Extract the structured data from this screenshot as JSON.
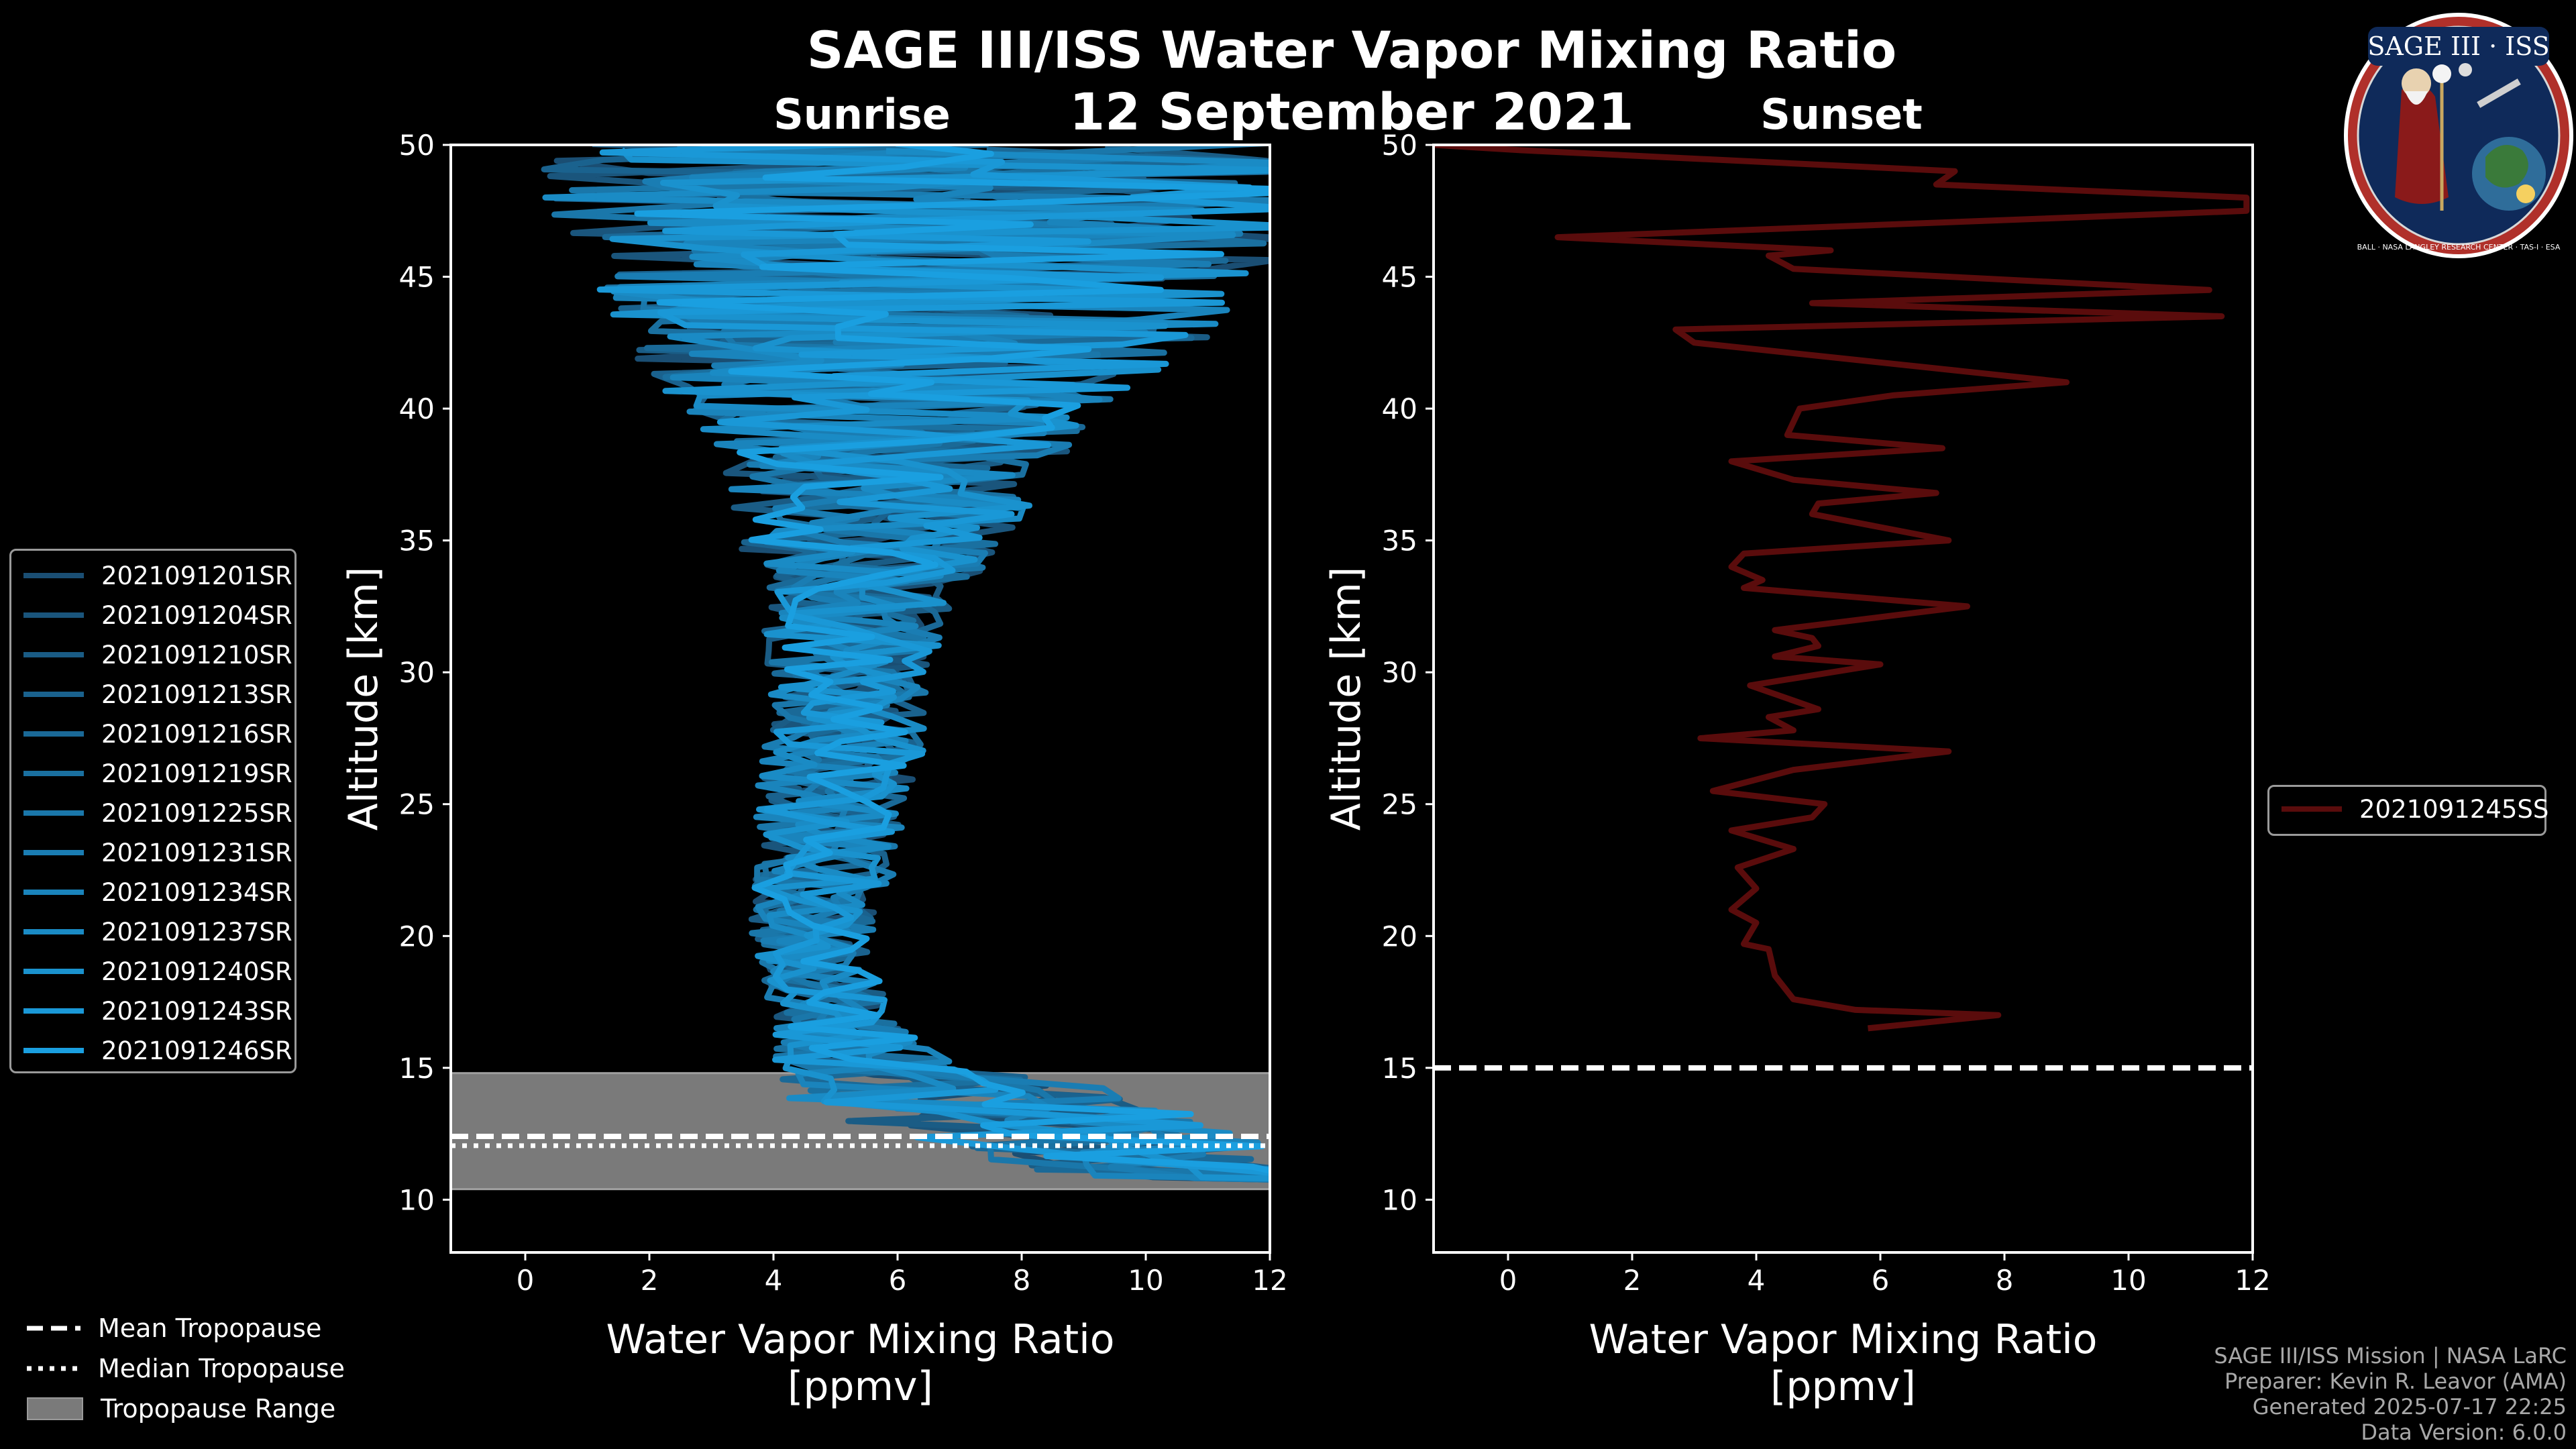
{
  "title": "SAGE III/ISS Water Vapor Mixing Ratio",
  "date": "12 September 2021",
  "logo": {
    "text": "SAGE III · ISS",
    "ring_text": "BALL · NASA LANGLEY RESEARCH CENTER · TAS-I · ESA"
  },
  "credits": [
    "SAGE III/ISS Mission | NASA LaRC",
    "Preparer: Kevin R. Leavor (AMA)",
    "Generated 2025-07-17 22:25",
    "Data Version: 6.0.0"
  ],
  "bottom_legend": [
    "Mean Tropopause",
    "Median Tropopause",
    "Tropopause Range"
  ],
  "chart_data": [
    {
      "type": "line",
      "title": "Sunrise",
      "xlabel": "Water Vapor Mixing Ratio\n[ppmv]",
      "xlabel_lines": [
        "Water Vapor Mixing Ratio",
        "[ppmv]"
      ],
      "ylabel": "Altitude [km]",
      "xlim": [
        -1.2,
        12
      ],
      "ylim": [
        8,
        50
      ],
      "xticks": [
        "0",
        "2",
        "4",
        "6",
        "8",
        "10",
        "12"
      ],
      "yticks": [
        "10",
        "15",
        "20",
        "25",
        "30",
        "35",
        "40",
        "45",
        "50"
      ],
      "series_color_start": "#1a4e73",
      "series_color_end": "#1a9fe0",
      "series": [
        {
          "name": "2021091201SR"
        },
        {
          "name": "2021091204SR"
        },
        {
          "name": "2021091210SR"
        },
        {
          "name": "2021091213SR"
        },
        {
          "name": "2021091216SR"
        },
        {
          "name": "2021091219SR"
        },
        {
          "name": "2021091225SR"
        },
        {
          "name": "2021091231SR"
        },
        {
          "name": "2021091234SR"
        },
        {
          "name": "2021091237SR"
        },
        {
          "name": "2021091240SR"
        },
        {
          "name": "2021091243SR"
        },
        {
          "name": "2021091246SR"
        }
      ],
      "profile_envelope": {
        "altitude_km": [
          10,
          12,
          14,
          15,
          16,
          17,
          18,
          20,
          22,
          25,
          28,
          30,
          33,
          35,
          38,
          40,
          42,
          45,
          48,
          50
        ],
        "center_ppmv": [
          12,
          9,
          7,
          5.5,
          5.2,
          5.0,
          4.8,
          4.6,
          4.8,
          5.0,
          5.2,
          5.2,
          5.4,
          5.6,
          5.8,
          6.0,
          6.2,
          6.5,
          6.8,
          7.0
        ],
        "half_spread_ppmv": [
          1,
          3,
          3,
          1.6,
          1.2,
          1.0,
          1.0,
          1.0,
          1.1,
          1.3,
          1.3,
          1.3,
          1.6,
          2.2,
          2.8,
          3.5,
          4.5,
          5.5,
          6.5,
          7.0
        ]
      },
      "tropopause": {
        "mean_km": 12.4,
        "median_km": 12.2,
        "range_km": [
          10.4,
          14.8
        ]
      }
    },
    {
      "type": "line",
      "title": "Sunset",
      "xlabel": "Water Vapor Mixing Ratio\n[ppmv]",
      "xlabel_lines": [
        "Water Vapor Mixing Ratio",
        "[ppmv]"
      ],
      "ylabel": "Altitude [km]",
      "xlim": [
        -1.2,
        12
      ],
      "ylim": [
        8,
        50
      ],
      "xticks": [
        "0",
        "2",
        "4",
        "6",
        "8",
        "10",
        "12"
      ],
      "yticks": [
        "10",
        "15",
        "20",
        "25",
        "30",
        "35",
        "40",
        "45",
        "50"
      ],
      "series": [
        {
          "name": "2021091245SS",
          "color": "#5a0c0c",
          "points": [
            [
              5.8,
              16.5
            ],
            [
              7.9,
              17.0
            ],
            [
              5.6,
              17.2
            ],
            [
              4.6,
              17.6
            ],
            [
              4.3,
              18.5
            ],
            [
              4.2,
              19.5
            ],
            [
              3.8,
              19.7
            ],
            [
              4.0,
              20.5
            ],
            [
              3.6,
              21.0
            ],
            [
              4.0,
              21.8
            ],
            [
              3.7,
              22.6
            ],
            [
              4.6,
              23.3
            ],
            [
              3.6,
              24.0
            ],
            [
              4.9,
              24.5
            ],
            [
              5.1,
              25.0
            ],
            [
              3.3,
              25.5
            ],
            [
              4.6,
              26.3
            ],
            [
              7.1,
              27.0
            ],
            [
              3.1,
              27.5
            ],
            [
              4.6,
              27.8
            ],
            [
              4.2,
              28.3
            ],
            [
              5.0,
              28.6
            ],
            [
              3.9,
              29.5
            ],
            [
              6.0,
              30.3
            ],
            [
              4.3,
              30.6
            ],
            [
              5.0,
              31.0
            ],
            [
              4.9,
              31.3
            ],
            [
              4.3,
              31.6
            ],
            [
              7.4,
              32.5
            ],
            [
              3.8,
              33.2
            ],
            [
              4.1,
              33.5
            ],
            [
              3.6,
              34.0
            ],
            [
              3.8,
              34.5
            ],
            [
              7.1,
              35.0
            ],
            [
              4.9,
              36.0
            ],
            [
              5.0,
              36.4
            ],
            [
              6.9,
              36.8
            ],
            [
              4.6,
              37.3
            ],
            [
              3.6,
              38.0
            ],
            [
              7.0,
              38.5
            ],
            [
              4.5,
              39.0
            ],
            [
              4.7,
              40.0
            ],
            [
              6.2,
              40.5
            ],
            [
              9.0,
              41.0
            ],
            [
              3.0,
              42.5
            ],
            [
              2.7,
              43.0
            ],
            [
              11.5,
              43.5
            ],
            [
              4.9,
              44.0
            ],
            [
              11.3,
              44.5
            ],
            [
              4.6,
              45.3
            ],
            [
              4.2,
              45.8
            ],
            [
              5.2,
              46.0
            ],
            [
              0.8,
              46.5
            ],
            [
              11.9,
              47.5
            ],
            [
              11.9,
              48.0
            ],
            [
              6.9,
              48.5
            ],
            [
              7.2,
              49.0
            ],
            [
              0.2,
              49.8
            ],
            [
              -1.2,
              50.0
            ]
          ]
        }
      ],
      "tropopause": {
        "mean_km": 15.0
      }
    }
  ]
}
